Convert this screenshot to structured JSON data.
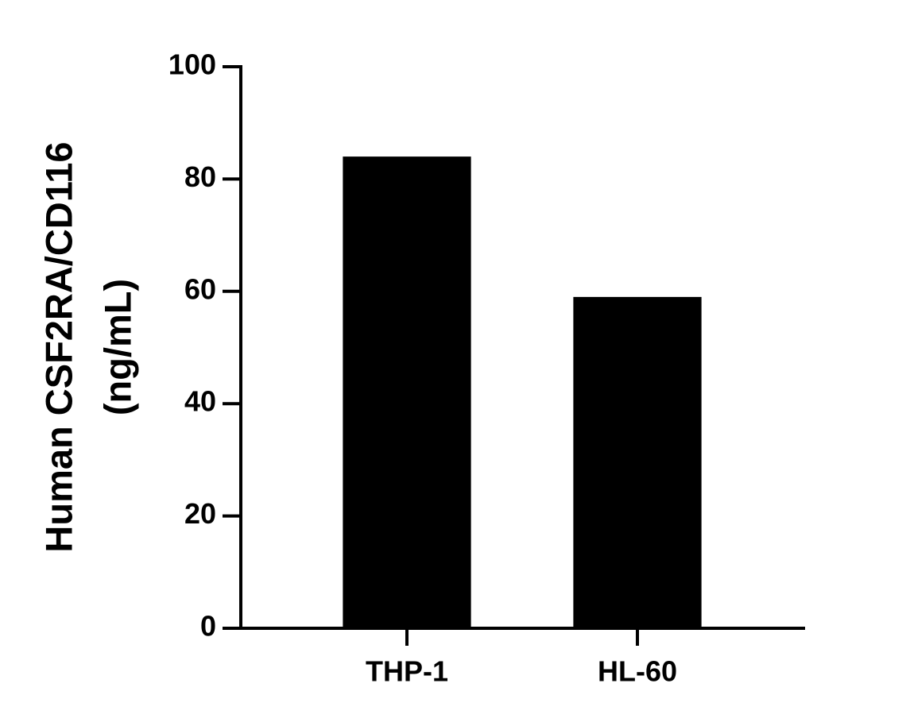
{
  "chart_data": {
    "type": "bar",
    "ylabel": [
      "Human CSF2RA/CD116",
      "(ng/mL)"
    ],
    "categories": [
      "THP-1",
      "HL-60"
    ],
    "values": [
      84,
      59
    ],
    "color": "#000000",
    "ylim": [
      0,
      100
    ],
    "yticks": [
      0,
      20,
      40,
      60,
      80,
      100
    ],
    "grid": false
  }
}
